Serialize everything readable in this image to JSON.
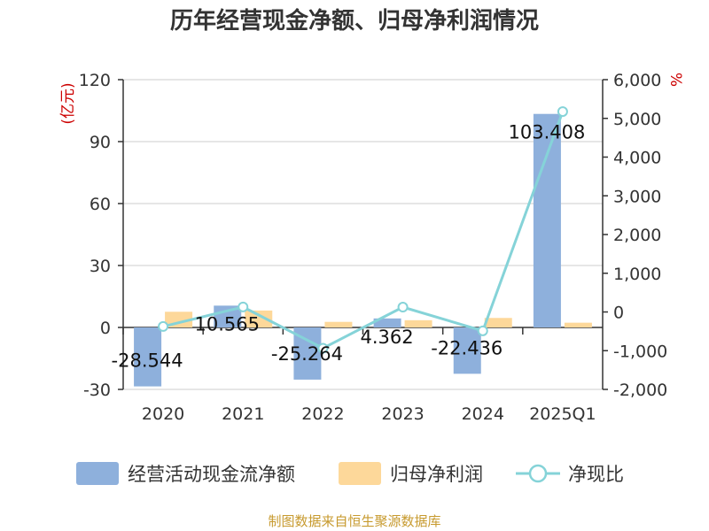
{
  "colors": {
    "cashflow": "#8eb0dc",
    "profit": "#fdd89a",
    "ratio": "#85d3d8",
    "unit_label": "#cc0000",
    "source": "#c79a2e"
  },
  "source_text": "制图数据来自恒生聚源数据库",
  "chart_data": {
    "type": "bar",
    "title": "历年经营现金净额、归母净利润情况",
    "categories": [
      "2020",
      "2021",
      "2022",
      "2023",
      "2024",
      "2025Q1"
    ],
    "left_axis": {
      "unit": "(亿元)",
      "ylim": [
        -30,
        120
      ],
      "ticks": [
        -30,
        0,
        30,
        60,
        90,
        120
      ]
    },
    "right_axis": {
      "unit": "%",
      "ylim": [
        -2000,
        6000
      ],
      "ticks": [
        -2000,
        -1000,
        0,
        1000,
        2000,
        3000,
        4000,
        5000,
        6000
      ],
      "tick_labels": [
        "-2,000",
        "-1,000",
        "0",
        "1,000",
        "2,000",
        "3,000",
        "4,000",
        "5,000",
        "6,000"
      ]
    },
    "series": [
      {
        "name": "经营活动现金流净额",
        "type": "bar",
        "axis": "left",
        "values": [
          -28.544,
          10.565,
          -25.264,
          4.362,
          -22.436,
          103.408
        ],
        "labels": [
          "-28.544",
          "10.565",
          "-25.264",
          "4.362",
          "-22.436",
          "103.408"
        ]
      },
      {
        "name": "归母净利润",
        "type": "bar",
        "axis": "left",
        "values": [
          7.6,
          8.2,
          2.7,
          3.5,
          4.6,
          2.3
        ]
      },
      {
        "name": "净现比",
        "type": "line",
        "axis": "right",
        "values": [
          -375,
          129,
          -936,
          125,
          -488,
          5175
        ]
      }
    ],
    "legend": {
      "position": "bottom"
    },
    "grid": true
  }
}
